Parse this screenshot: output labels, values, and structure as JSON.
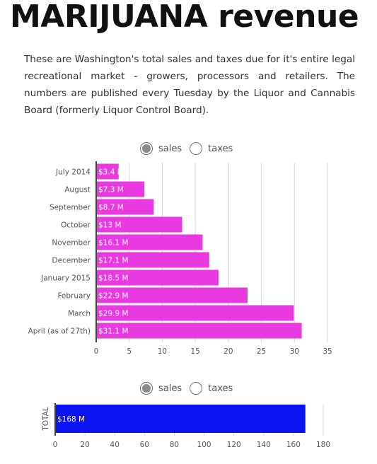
{
  "title": "MARIJUANA revenue",
  "description": "These are Washington's total sales and taxes due for it's entire legal recreational market - growers, processors and retailers. The numbers are published every Tuesday by the Liquor and Cannabis Board (formerly Liquor Control Board).",
  "toggle1": {
    "option_a": "sales",
    "option_b": "taxes",
    "selected": "sales"
  },
  "toggle2": {
    "option_a": "sales",
    "option_b": "taxes",
    "selected": "sales"
  },
  "chart_data": [
    {
      "type": "bar",
      "orientation": "horizontal",
      "categories": [
        "July 2014",
        "August",
        "September",
        "October",
        "November",
        "December",
        "January 2015",
        "February",
        "March",
        "April (as of 27th)"
      ],
      "values": [
        3.4,
        7.3,
        8.7,
        13,
        16.1,
        17.1,
        18.5,
        22.9,
        29.9,
        31.1
      ],
      "data_labels": [
        "$3.4 M",
        "$7.3 M",
        "$8.7 M",
        "$13 M",
        "$16.1 M",
        "$17.1 M",
        "$18.5 M",
        "$22.9 M",
        "$29.9 M",
        "$31.1 M"
      ],
      "xlim": [
        0,
        35
      ],
      "xticks": [
        0,
        5,
        10,
        15,
        20,
        25,
        30,
        35
      ],
      "grid": true,
      "color": "#e83ae0"
    },
    {
      "type": "bar",
      "orientation": "horizontal",
      "categories": [
        "TOTAL"
      ],
      "values": [
        168
      ],
      "data_labels": [
        "$168 M"
      ],
      "xlim": [
        0,
        180
      ],
      "xticks": [
        0,
        20,
        40,
        60,
        80,
        100,
        120,
        140,
        160,
        180
      ],
      "grid": true,
      "color": "#0a14f0"
    }
  ]
}
